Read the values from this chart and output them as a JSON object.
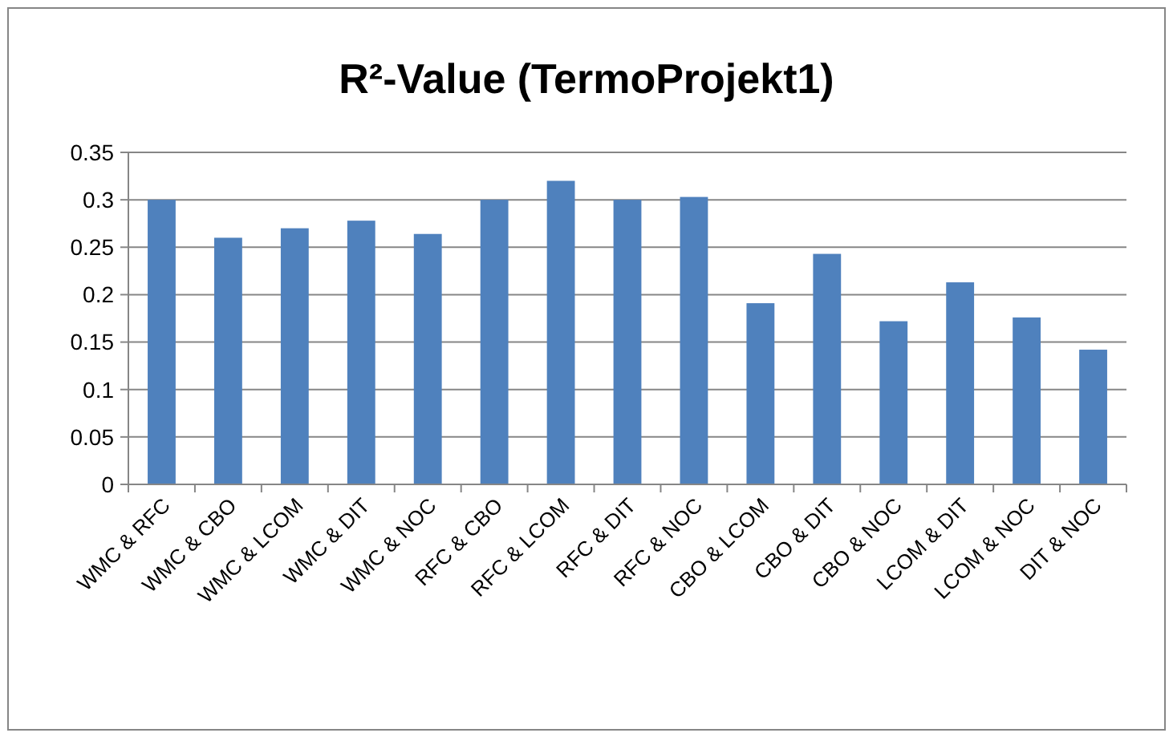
{
  "chart_data": {
    "type": "bar",
    "title": "R²-Value (TermoProjekt1)",
    "categories": [
      "WMC & RFC",
      "WMC & CBO",
      "WMC & LCOM",
      "WMC & DIT",
      "WMC & NOC",
      "RFC & CBO",
      "RFC & LCOM",
      "RFC & DIT",
      "RFC & NOC",
      "CBO & LCOM",
      "CBO & DIT",
      "CBO & NOC",
      "LCOM & DIT",
      "LCOM & NOC",
      "DIT & NOC"
    ],
    "values": [
      0.3,
      0.26,
      0.27,
      0.278,
      0.264,
      0.3,
      0.32,
      0.3,
      0.303,
      0.191,
      0.243,
      0.172,
      0.213,
      0.176,
      0.142
    ],
    "color": "#4f81bd",
    "ylim": [
      0,
      0.35
    ],
    "yticks": [
      0,
      0.05,
      0.1,
      0.15,
      0.2,
      0.25,
      0.3,
      0.35
    ],
    "grid": "y"
  }
}
